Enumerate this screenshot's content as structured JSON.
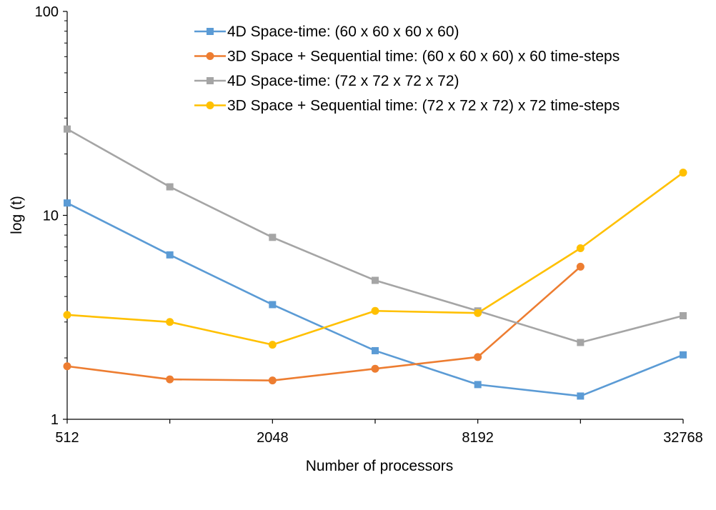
{
  "chart_data": {
    "type": "line",
    "xlabel": "Number of processors",
    "ylabel": "log (t)",
    "x_scale": "log2",
    "y_scale": "log10",
    "xlim": [
      512,
      32768
    ],
    "ylim": [
      1,
      100
    ],
    "x": [
      512,
      1024,
      2048,
      4096,
      8192,
      16384,
      32768
    ],
    "x_tick_labels": [
      "512",
      "2048",
      "8192",
      "32768"
    ],
    "x_tick_values": [
      512,
      2048,
      8192,
      32768
    ],
    "y_tick_labels": [
      "1",
      "10",
      "100"
    ],
    "y_tick_values": [
      1,
      10,
      100
    ],
    "grid": false,
    "legend_position": "top-right",
    "series": [
      {
        "name": "4D Space-time: (60 x 60 x 60 x 60)",
        "color": "#5b9bd5",
        "marker": "square",
        "values": [
          11.5,
          6.4,
          3.65,
          2.17,
          1.48,
          1.3,
          2.07
        ]
      },
      {
        "name": "3D Space + Sequential time: (60 x 60 x 60)  x  60 time-steps",
        "color": "#ed7d31",
        "marker": "circle",
        "values": [
          1.82,
          1.57,
          1.55,
          1.77,
          2.02,
          5.6,
          null
        ]
      },
      {
        "name": "4D Space-time: (72 x 72 x 72 x 72)",
        "color": "#a5a5a5",
        "marker": "square",
        "values": [
          26.5,
          13.8,
          7.8,
          4.8,
          3.4,
          2.38,
          3.22
        ]
      },
      {
        "name": "3D Space + Sequential time: (72 x 72 x 72) x 72 time-steps",
        "color": "#ffc000",
        "marker": "circle",
        "values": [
          3.25,
          3.0,
          2.32,
          3.4,
          3.32,
          6.9,
          16.2
        ]
      }
    ]
  }
}
